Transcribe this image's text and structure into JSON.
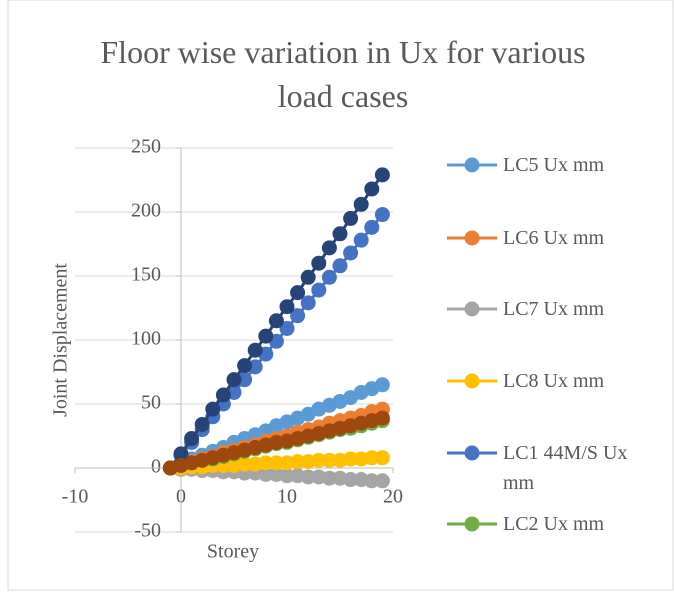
{
  "chart_data": {
    "type": "line",
    "title": "Floor wise variation in Ux for various load cases",
    "xlabel": "Storey",
    "ylabel": "Joint Displacement",
    "x": [
      -1,
      0,
      1,
      2,
      3,
      4,
      5,
      6,
      7,
      8,
      9,
      10,
      11,
      12,
      13,
      14,
      15,
      16,
      17,
      18,
      19
    ],
    "xlim": [
      -10,
      20
    ],
    "xticks": [
      -10,
      0,
      10,
      20
    ],
    "ylim": [
      -50,
      250
    ],
    "yticks": [
      -50,
      0,
      50,
      100,
      150,
      200,
      250
    ],
    "grid": true,
    "legend": "right",
    "series": [
      {
        "name": "LC5 Ux mm",
        "color": "#5b9bd5",
        "values": [
          0,
          3,
          7,
          10,
          13,
          16,
          20,
          23,
          26,
          29,
          33,
          36,
          39,
          42,
          46,
          49,
          52,
          55,
          59,
          62,
          65
        ]
      },
      {
        "name": "LC6 Ux mm",
        "color": "#ed7d31",
        "values": [
          0,
          2,
          5,
          7,
          9,
          12,
          14,
          16,
          18,
          21,
          23,
          25,
          28,
          30,
          32,
          35,
          37,
          39,
          41,
          44,
          46
        ]
      },
      {
        "name": "LC7 Ux mm",
        "color": "#a5a5a5",
        "values": [
          0,
          -1,
          -1,
          -2,
          -2,
          -3,
          -3,
          -4,
          -4,
          -5,
          -5,
          -6,
          -6,
          -7,
          -7,
          -8,
          -8,
          -9,
          -9,
          -10,
          -10
        ]
      },
      {
        "name": "LC8 Ux mm",
        "color": "#ffc000",
        "values": [
          0,
          0,
          1,
          1,
          2,
          2,
          2,
          3,
          3,
          4,
          4,
          4,
          5,
          5,
          6,
          6,
          6,
          7,
          7,
          8,
          8
        ]
      },
      {
        "name": "LC1 44M/S Ux mm",
        "color": "#4472c4",
        "values": [
          0,
          10,
          20,
          30,
          40,
          50,
          59,
          69,
          79,
          89,
          99,
          109,
          119,
          129,
          139,
          149,
          158,
          168,
          178,
          188,
          198
        ]
      },
      {
        "name": "LC2 Ux mm",
        "color": "#70ad47",
        "values": [
          0,
          2,
          4,
          6,
          7,
          9,
          11,
          13,
          15,
          17,
          19,
          20,
          22,
          24,
          26,
          28,
          30,
          31,
          33,
          35,
          37
        ]
      },
      {
        "color": "#264478",
        "values": [
          0,
          11,
          23,
          34,
          46,
          57,
          69,
          80,
          92,
          103,
          115,
          126,
          137,
          149,
          160,
          172,
          183,
          195,
          206,
          218,
          229
        ]
      },
      {
        "color": "#9e480e",
        "values": [
          0,
          2,
          4,
          6,
          8,
          10,
          12,
          14,
          16,
          18,
          20,
          21,
          23,
          25,
          27,
          29,
          31,
          33,
          35,
          37,
          39
        ]
      }
    ]
  }
}
